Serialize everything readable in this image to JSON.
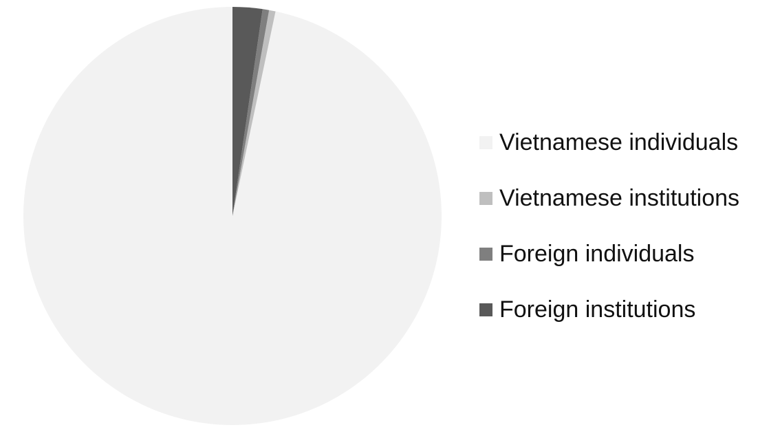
{
  "chart_data": {
    "type": "pie",
    "categories": [
      "Vietnamese individuals",
      "Vietnamese institutions",
      "Foreign individuals",
      "Foreign institutions"
    ],
    "values": [
      96.7,
      0.5,
      0.5,
      2.3
    ],
    "colors": [
      "#f2f2f2",
      "#bfbfbf",
      "#7f7f7f",
      "#595959"
    ],
    "start_angle_deg": 0,
    "direction": "counterclockwise",
    "legend": "right"
  }
}
